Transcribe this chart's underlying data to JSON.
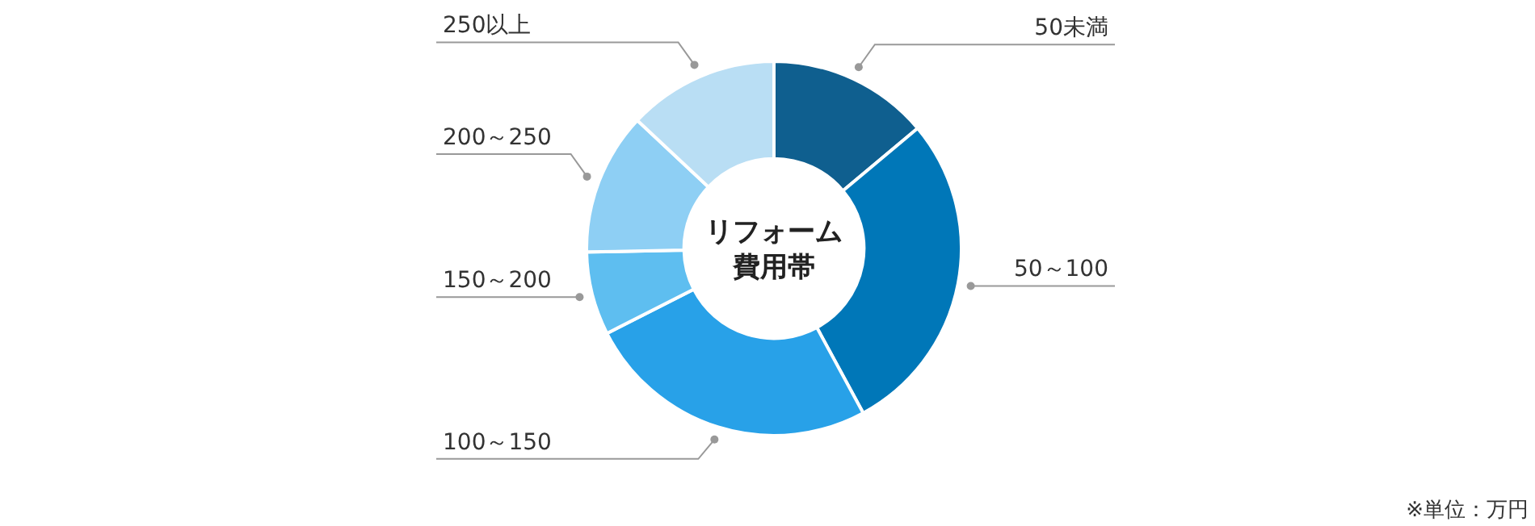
{
  "chart_data": {
    "type": "donut",
    "title": "リフォーム",
    "subtitle": "費用帯",
    "categories": [
      "50未満",
      "50～100",
      "100～150",
      "150～200",
      "200～250",
      "250以上"
    ],
    "values": [
      13.9,
      28.2,
      25.4,
      7.2,
      12.3,
      13.0
    ],
    "colors": [
      "#0f5f8f",
      "#0077b8",
      "#28a1e8",
      "#5ebef0",
      "#8ecff4",
      "#b9def4"
    ],
    "annotations": [
      "※単位：万円"
    ],
    "legend": false
  }
}
